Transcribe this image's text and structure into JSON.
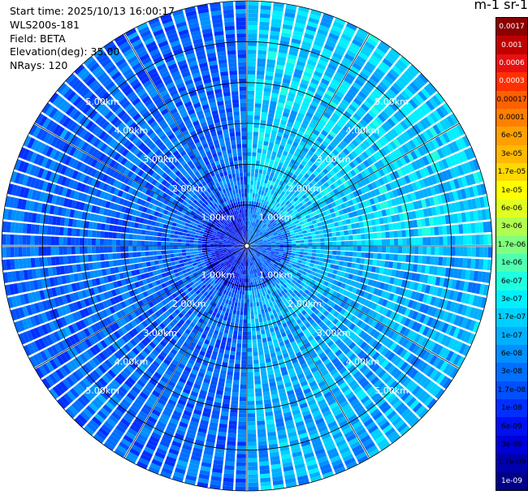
{
  "info": {
    "start_time": "Start time: 2025/10/13 16:00:17",
    "instrument": "WLS200s-181",
    "field": "Field: BETA",
    "elevation": "Elevation(deg): 35.00",
    "nrays": "NRays: 120"
  },
  "colorbar": {
    "title": "m-1 sr-1",
    "labels": [
      "0.0017",
      "0.001",
      "0.0006",
      "0.0003",
      "0.00017",
      "0.0001",
      "6e-05",
      "3e-05",
      "1.7e-05",
      "1e-05",
      "6e-06",
      "3e-06",
      "1.7e-06",
      "1e-06",
      "6e-07",
      "3e-07",
      "1.7e-07",
      "1e-07",
      "6e-08",
      "3e-08",
      "1.7e-08",
      "1e-08",
      "6e-09",
      "3e-09",
      "1.7e-09",
      "1e-09"
    ],
    "colors": [
      "#8b0000",
      "#c00000",
      "#e81010",
      "#ff3000",
      "#ff6000",
      "#ff8000",
      "#ffa000",
      "#ffb800",
      "#ffd800",
      "#ffff00",
      "#e0ff20",
      "#b0ff50",
      "#80ff80",
      "#50ffb0",
      "#20ffe0",
      "#00f0ff",
      "#00d0ff",
      "#00b0ff",
      "#0090ff",
      "#0070ff",
      "#0050ff",
      "#0030ff",
      "#0010f0",
      "#0000d8",
      "#0000b0",
      "#000088"
    ],
    "label_colors": [
      "#ffffff",
      "#ffffff",
      "#ffffff",
      "#ffffff",
      "#000000",
      "#000000",
      "#000000",
      "#000000",
      "#000000",
      "#000000",
      "#000000",
      "#000000",
      "#000000",
      "#000000",
      "#000000",
      "#000000",
      "#000000",
      "#000000",
      "#000000",
      "#000000",
      "#000000",
      "#000000",
      "#000000",
      "#000000",
      "#000000",
      "#ffffff"
    ]
  },
  "chart_data": {
    "type": "heatmap",
    "projection": "polar (PPI)",
    "field": "BETA",
    "elevation_deg": 35.0,
    "n_rays": 120,
    "range_rings_km": [
      1.0,
      2.0,
      3.0,
      4.0,
      5.0
    ],
    "range_ring_labels": [
      "1.00km",
      "2.00km",
      "3.00km",
      "4.00km",
      "5.00km"
    ],
    "max_range_km": 6.0,
    "spoke_angles_deg": [
      0,
      30,
      60,
      90,
      120,
      150,
      180,
      210,
      240,
      270,
      300,
      330
    ],
    "label_bearings_deg": [
      45,
      135,
      225,
      315
    ],
    "color_scale": "log",
    "value_range": [
      1e-09,
      0.0017
    ],
    "backscatter_by_sector": [
      {
        "bearing_range_deg": [
          0,
          90
        ],
        "typical_value": 1.7e-07
      },
      {
        "bearing_range_deg": [
          90,
          180
        ],
        "typical_value": 1e-07
      },
      {
        "bearing_range_deg": [
          180,
          270
        ],
        "typical_value": 3e-08
      },
      {
        "bearing_range_deg": [
          270,
          360
        ],
        "typical_value": 3e-08
      }
    ],
    "grid": true
  }
}
